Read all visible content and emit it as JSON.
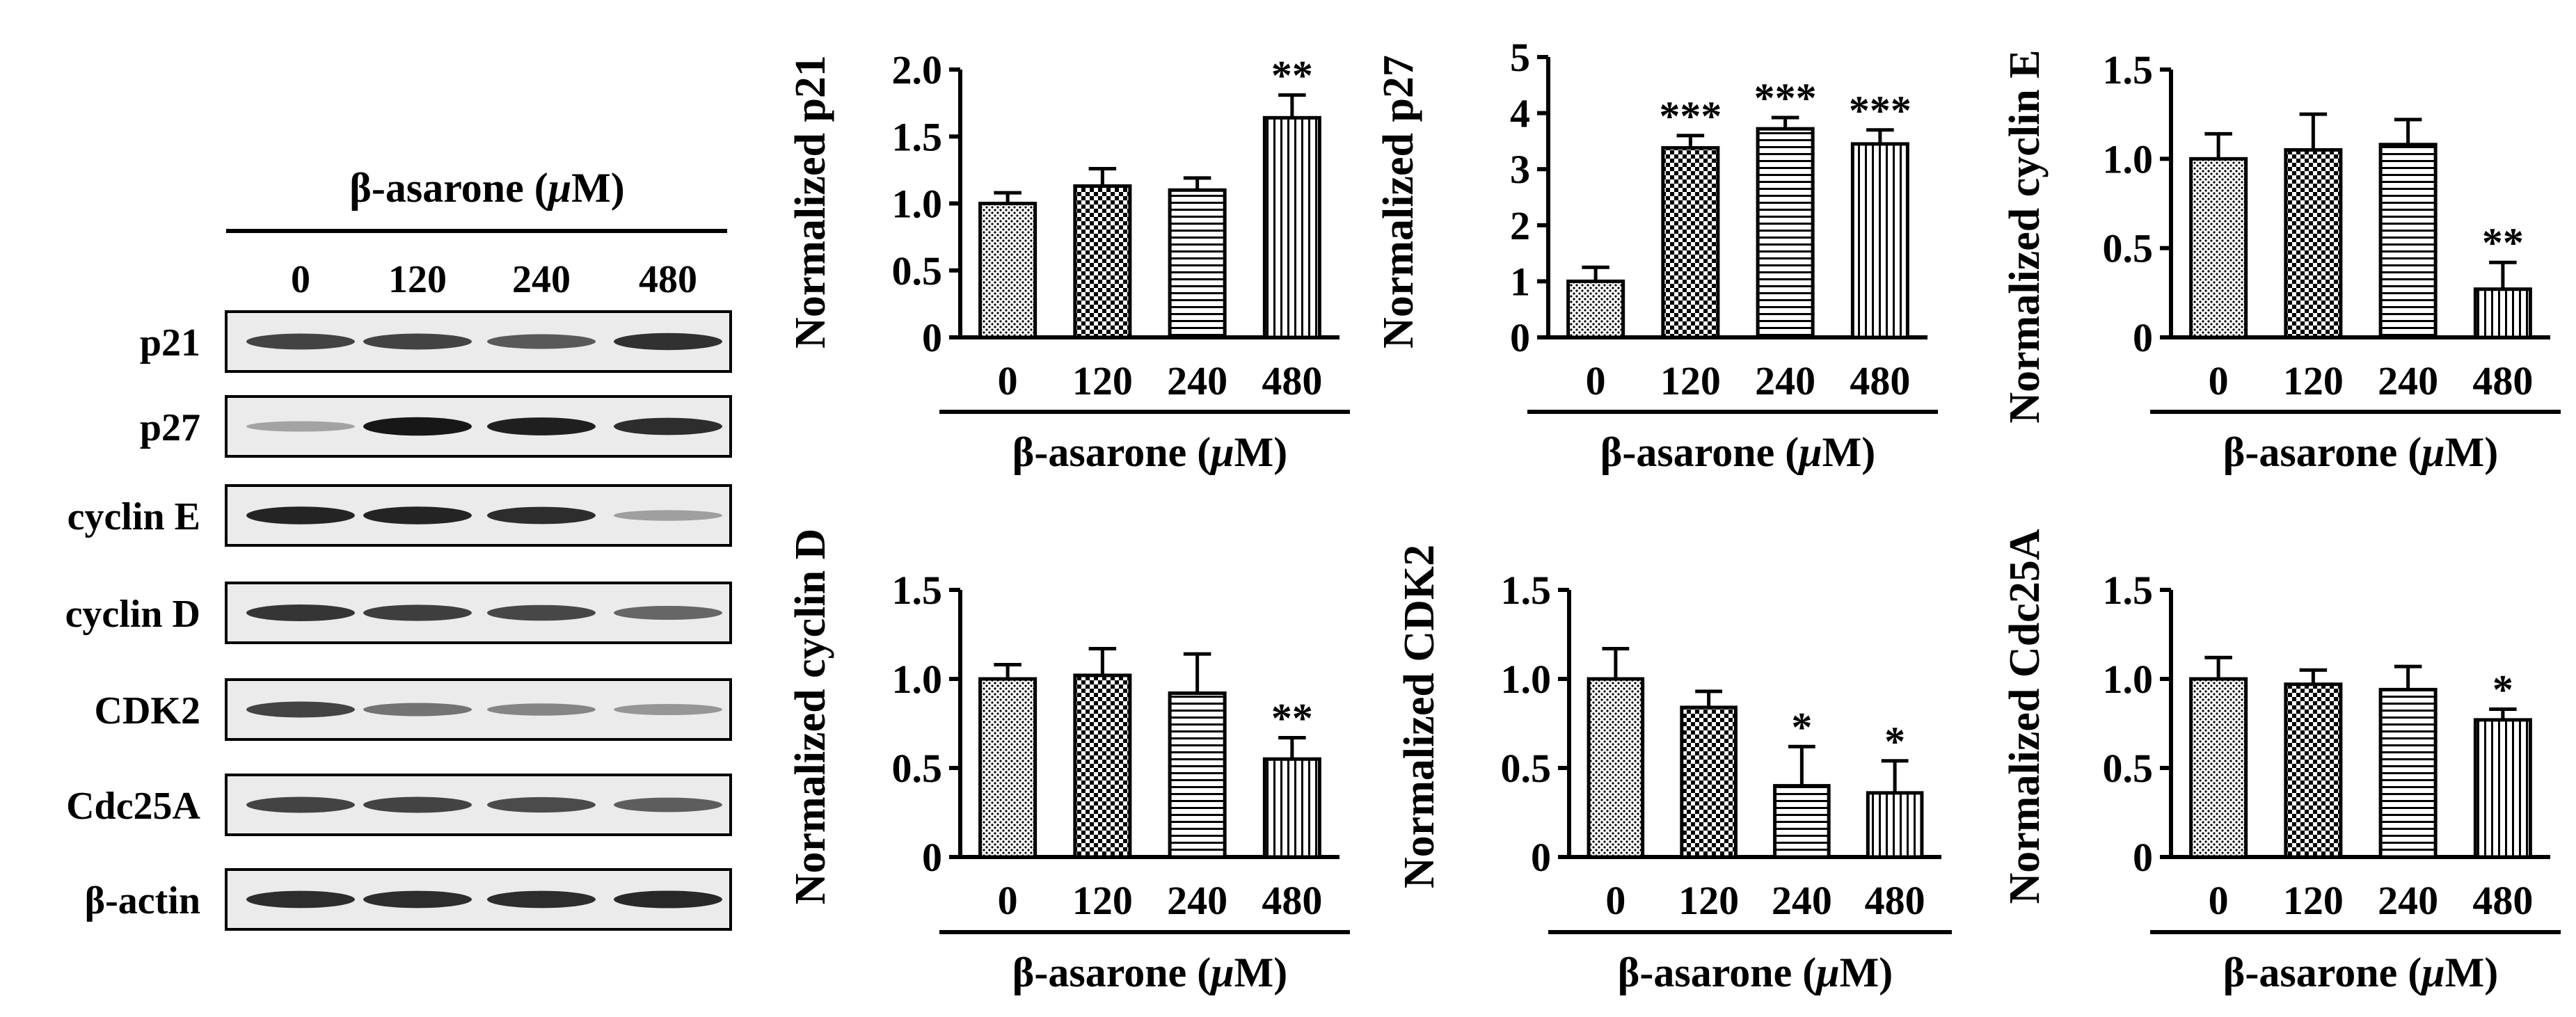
{
  "western_blot": {
    "treatment_label": "β-asarone (",
    "treatment_unit_symbol": "μ",
    "treatment_unit_rest": "M)",
    "doses": [
      "0",
      "120",
      "240",
      "480"
    ],
    "proteins": [
      {
        "label": "p21",
        "intensities": [
          0.72,
          0.72,
          0.62,
          0.8
        ]
      },
      {
        "label": "p27",
        "intensities": [
          0.28,
          0.92,
          0.88,
          0.82
        ]
      },
      {
        "label": "cyclin E",
        "intensities": [
          0.86,
          0.86,
          0.82,
          0.3
        ]
      },
      {
        "label": "cyclin D",
        "intensities": [
          0.78,
          0.74,
          0.7,
          0.56
        ]
      },
      {
        "label": "CDK2",
        "intensities": [
          0.72,
          0.5,
          0.42,
          0.34
        ]
      },
      {
        "label": "Cdc25A",
        "intensities": [
          0.72,
          0.72,
          0.68,
          0.6
        ]
      },
      {
        "label": "β-actin",
        "intensities": [
          0.82,
          0.82,
          0.82,
          0.84
        ]
      }
    ]
  },
  "chart_data": [
    {
      "type": "bar",
      "ylabel": "Normalized p21",
      "xlabel_main": "β-asarone (",
      "xlabel_unit_symbol": "μ",
      "xlabel_unit_rest": "M)",
      "categories": [
        "0",
        "120",
        "240",
        "480"
      ],
      "values": [
        1.0,
        1.13,
        1.1,
        1.64
      ],
      "errors": [
        0.08,
        0.13,
        0.09,
        0.17
      ],
      "significance": [
        "",
        "",
        "",
        "**"
      ],
      "ylim": [
        0,
        2.0
      ],
      "yticks": [
        "0",
        "0.5",
        "1.0",
        "1.5",
        "2.0"
      ]
    },
    {
      "type": "bar",
      "ylabel": "Normalized p27",
      "xlabel_main": "β-asarone (",
      "xlabel_unit_symbol": "μ",
      "xlabel_unit_rest": "M)",
      "categories": [
        "0",
        "120",
        "240",
        "480"
      ],
      "values": [
        1.0,
        3.38,
        3.72,
        3.45
      ],
      "errors": [
        0.25,
        0.22,
        0.2,
        0.25
      ],
      "significance": [
        "",
        "***",
        "***",
        "***"
      ],
      "ylim": [
        0,
        5
      ],
      "yticks": [
        "0",
        "1",
        "2",
        "3",
        "4",
        "5"
      ]
    },
    {
      "type": "bar",
      "ylabel": "Normalized cyclin E",
      "xlabel_main": "β-asarone (",
      "xlabel_unit_symbol": "μ",
      "xlabel_unit_rest": "M)",
      "categories": [
        "0",
        "120",
        "240",
        "480"
      ],
      "values": [
        1.0,
        1.05,
        1.08,
        0.27
      ],
      "errors": [
        0.14,
        0.2,
        0.14,
        0.15
      ],
      "significance": [
        "",
        "",
        "",
        "**"
      ],
      "ylim": [
        0,
        1.5
      ],
      "yticks": [
        "0",
        "0.5",
        "1.0",
        "1.5"
      ]
    },
    {
      "type": "bar",
      "ylabel": "Normalized cyclin D",
      "xlabel_main": "β-asarone (",
      "xlabel_unit_symbol": "μ",
      "xlabel_unit_rest": "M)",
      "categories": [
        "0",
        "120",
        "240",
        "480"
      ],
      "values": [
        1.0,
        1.02,
        0.92,
        0.55
      ],
      "errors": [
        0.08,
        0.15,
        0.22,
        0.12
      ],
      "significance": [
        "",
        "",
        "",
        "**"
      ],
      "ylim": [
        0,
        1.5
      ],
      "yticks": [
        "0",
        "0.5",
        "1.0",
        "1.5"
      ]
    },
    {
      "type": "bar",
      "ylabel": "Normalized CDK2",
      "xlabel_main": "β-asarone (",
      "xlabel_unit_symbol": "μ",
      "xlabel_unit_rest": "M)",
      "categories": [
        "0",
        "120",
        "240",
        "480"
      ],
      "values": [
        1.0,
        0.84,
        0.4,
        0.36
      ],
      "errors": [
        0.17,
        0.09,
        0.22,
        0.18
      ],
      "significance": [
        "",
        "",
        "*",
        "*"
      ],
      "ylim": [
        0,
        1.5
      ],
      "yticks": [
        "0",
        "0.5",
        "1.0",
        "1.5"
      ]
    },
    {
      "type": "bar",
      "ylabel": "Normalized Cdc25A",
      "xlabel_main": "β-asarone (",
      "xlabel_unit_symbol": "μ",
      "xlabel_unit_rest": "M)",
      "categories": [
        "0",
        "120",
        "240",
        "480"
      ],
      "values": [
        1.0,
        0.97,
        0.94,
        0.77
      ],
      "errors": [
        0.12,
        0.08,
        0.13,
        0.06
      ],
      "significance": [
        "",
        "",
        "",
        "*"
      ],
      "ylim": [
        0,
        1.5
      ],
      "yticks": [
        "0",
        "0.5",
        "1.0",
        "1.5"
      ]
    }
  ]
}
